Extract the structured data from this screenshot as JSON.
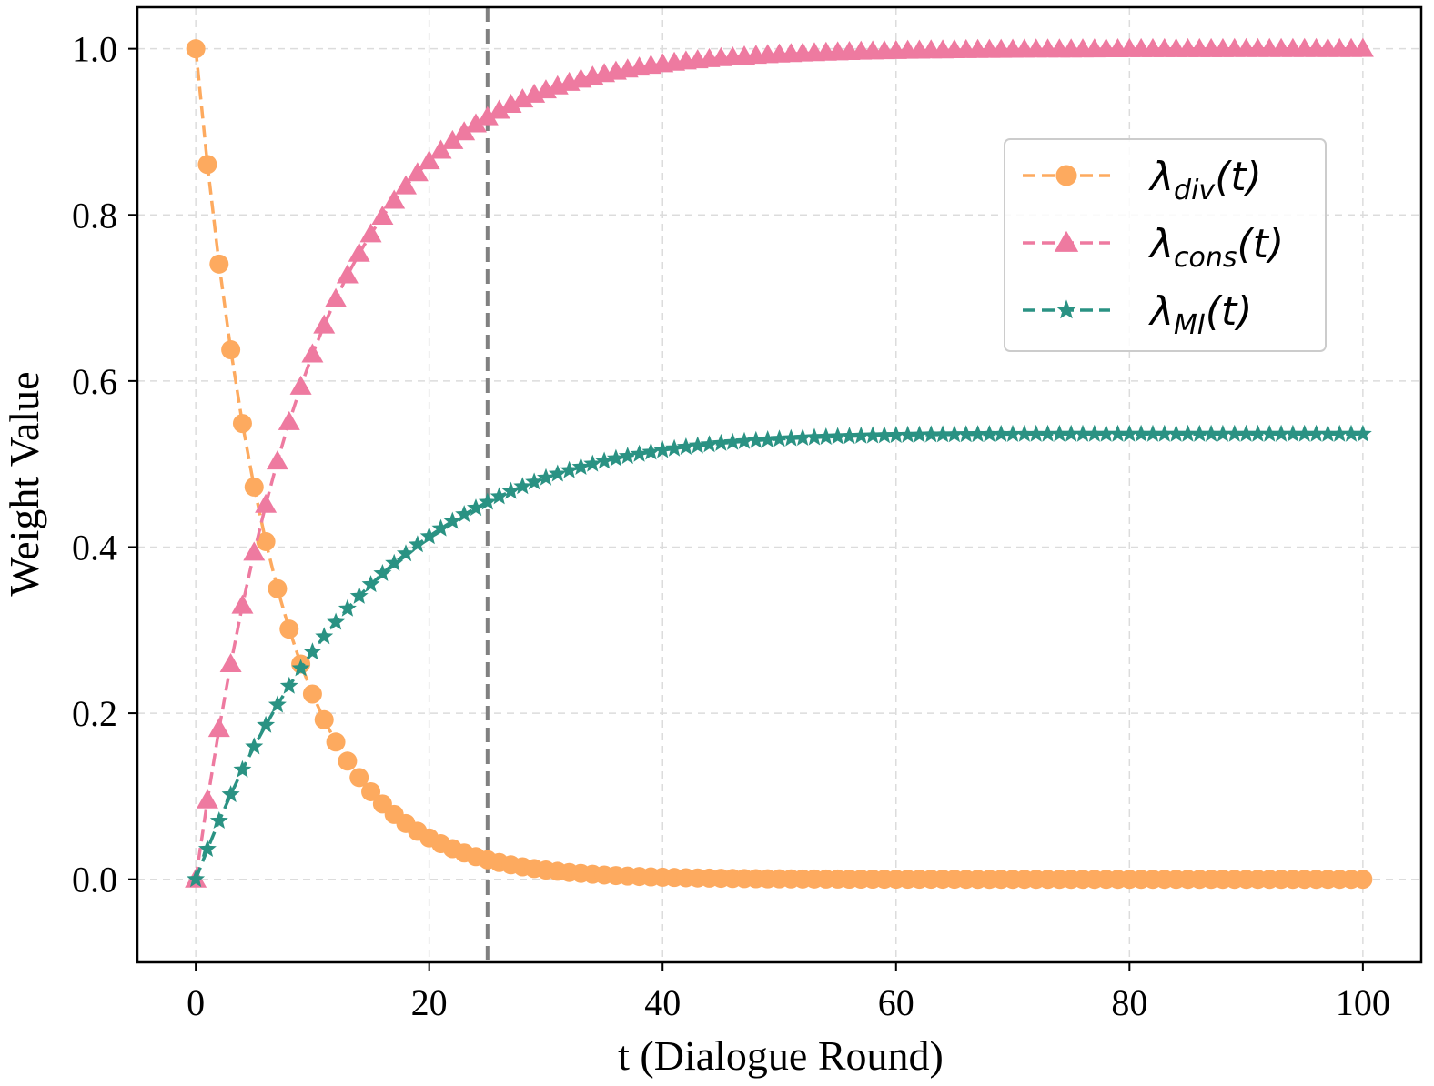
{
  "chart_data": {
    "type": "line",
    "title": "",
    "xlabel": "t (Dialogue Round)",
    "ylabel": "Weight Value",
    "xlim": [
      -5,
      105
    ],
    "ylim": [
      -0.1,
      1.05
    ],
    "xticks": [
      0,
      20,
      40,
      60,
      80,
      100
    ],
    "yticks": [
      0.0,
      0.2,
      0.4,
      0.6,
      0.8,
      1.0
    ],
    "xtick_labels": [
      "0",
      "20",
      "40",
      "60",
      "80",
      "100"
    ],
    "ytick_labels": [
      "0.0",
      "0.2",
      "0.4",
      "0.6",
      "0.8",
      "1.0"
    ],
    "grid": true,
    "legend_position": "upper-right",
    "vline": {
      "x": 25,
      "color": "#808080",
      "style": "dashed"
    },
    "x": [
      0,
      1,
      2,
      3,
      4,
      5,
      6,
      7,
      8,
      9,
      10,
      11,
      12,
      13,
      14,
      15,
      16,
      17,
      18,
      19,
      20,
      21,
      22,
      23,
      24,
      25,
      26,
      27,
      28,
      29,
      30,
      31,
      32,
      33,
      34,
      35,
      36,
      37,
      38,
      39,
      40,
      41,
      42,
      43,
      44,
      45,
      46,
      47,
      48,
      49,
      50,
      51,
      52,
      53,
      54,
      55,
      56,
      57,
      58,
      59,
      60,
      61,
      62,
      63,
      64,
      65,
      66,
      67,
      68,
      69,
      70,
      71,
      72,
      73,
      74,
      75,
      76,
      77,
      78,
      79,
      80,
      81,
      82,
      83,
      84,
      85,
      86,
      87,
      88,
      89,
      90,
      91,
      92,
      93,
      94,
      95,
      96,
      97,
      98,
      99,
      100
    ],
    "series": [
      {
        "name": "λdiv(t)",
        "label_main": "λ",
        "label_sub": "div",
        "label_tail": "(t)",
        "color": "#FDAA5F",
        "marker": "circle",
        "values": [
          1.0,
          0.8607,
          0.7408,
          0.6376,
          0.5488,
          0.4724,
          0.4066,
          0.3499,
          0.3012,
          0.2592,
          0.2231,
          0.1921,
          0.1653,
          0.1423,
          0.1225,
          0.1054,
          0.0907,
          0.0781,
          0.0672,
          0.0578,
          0.0498,
          0.0429,
          0.0369,
          0.0317,
          0.0273,
          0.0235,
          0.0202,
          0.0174,
          0.015,
          0.0129,
          0.0111,
          0.0096,
          0.0082,
          0.0071,
          0.0061,
          0.0052,
          0.0045,
          0.0039,
          0.0034,
          0.0029,
          0.0025,
          0.0022,
          0.0019,
          0.0016,
          0.0014,
          0.0012,
          0.001,
          0.0009,
          0.0007,
          0.0006,
          0.0006,
          0.0005,
          0.0004,
          0.0004,
          0.0003,
          0.0003,
          0.0002,
          0.0002,
          0.0002,
          0.0001,
          0.0001,
          0.0001,
          0.0001,
          0.0001,
          0.0001,
          0.0001,
          0.0,
          0.0,
          0.0,
          0.0,
          0.0,
          0.0,
          0.0,
          0.0,
          0.0,
          0.0,
          0.0,
          0.0,
          0.0,
          0.0,
          0.0,
          0.0,
          0.0,
          0.0,
          0.0,
          0.0,
          0.0,
          0.0,
          0.0,
          0.0,
          0.0,
          0.0,
          0.0,
          0.0,
          0.0,
          0.0,
          0.0,
          0.0,
          0.0,
          0.0,
          0.0
        ]
      },
      {
        "name": "λcons(t)",
        "label_main": "λ",
        "label_sub": "cons",
        "label_tail": "(t)",
        "color": "#EE7AA0",
        "marker": "triangle",
        "values": [
          0.0,
          0.0952,
          0.1813,
          0.2592,
          0.3297,
          0.3935,
          0.4512,
          0.5034,
          0.5507,
          0.5934,
          0.6321,
          0.6671,
          0.6988,
          0.7275,
          0.7534,
          0.7769,
          0.7981,
          0.8173,
          0.8347,
          0.8504,
          0.8647,
          0.8775,
          0.8892,
          0.8997,
          0.9093,
          0.9179,
          0.9257,
          0.9328,
          0.9392,
          0.945,
          0.9502,
          0.955,
          0.9592,
          0.9631,
          0.9666,
          0.9698,
          0.9727,
          0.9753,
          0.9776,
          0.9798,
          0.9817,
          0.9834,
          0.985,
          0.9864,
          0.9877,
          0.9889,
          0.9899,
          0.9909,
          0.9918,
          0.9926,
          0.9933,
          0.9939,
          0.9945,
          0.995,
          0.9955,
          0.9959,
          0.9963,
          0.9967,
          0.997,
          0.9973,
          0.9975,
          0.9978,
          0.998,
          0.9982,
          0.9983,
          0.9985,
          0.9986,
          0.9988,
          0.9989,
          0.999,
          0.9991,
          0.9992,
          0.9993,
          0.9993,
          0.9994,
          0.9994,
          0.9995,
          0.9995,
          0.9996,
          0.9996,
          0.9997,
          0.9997,
          0.9997,
          0.9998,
          0.9998,
          0.9998,
          0.9998,
          0.9998,
          0.9998,
          0.9999,
          0.9999,
          0.9999,
          0.9999,
          0.9999,
          0.9999,
          0.9999,
          0.9999,
          0.9999,
          0.9999,
          0.9999,
          1.0
        ]
      },
      {
        "name": "λMI(t)",
        "label_main": "λ",
        "label_sub": "MI",
        "label_tail": "(t)",
        "color": "#2A9283",
        "marker": "star",
        "values": [
          0.0,
          0.0363,
          0.0703,
          0.102,
          0.1319,
          0.1597,
          0.1856,
          0.21,
          0.2327,
          0.2539,
          0.2738,
          0.2923,
          0.3096,
          0.3258,
          0.3409,
          0.355,
          0.3682,
          0.3806,
          0.3921,
          0.4029,
          0.4129,
          0.4223,
          0.4311,
          0.4393,
          0.447,
          0.4542,
          0.4609,
          0.4672,
          0.473,
          0.4784,
          0.4834,
          0.4881,
          0.4924,
          0.4964,
          0.5001,
          0.5035,
          0.5066,
          0.5094,
          0.512,
          0.5144,
          0.5166,
          0.5186,
          0.5204,
          0.522,
          0.5235,
          0.5249,
          0.5261,
          0.5272,
          0.5283,
          0.5292,
          0.53,
          0.5307,
          0.5314,
          0.532,
          0.5325,
          0.533,
          0.5334,
          0.5338,
          0.5341,
          0.5344,
          0.5347,
          0.5349,
          0.5351,
          0.5353,
          0.5354,
          0.5355,
          0.5356,
          0.5357,
          0.5358,
          0.5359,
          0.5359,
          0.536,
          0.536,
          0.536,
          0.5361,
          0.5361,
          0.5361,
          0.5361,
          0.5361,
          0.5361,
          0.5361,
          0.5361,
          0.5361,
          0.5361,
          0.5361,
          0.5361,
          0.5361,
          0.5361,
          0.5361,
          0.5361,
          0.5361,
          0.5361,
          0.5361,
          0.5361,
          0.5361,
          0.5361,
          0.5361,
          0.5361,
          0.5361,
          0.5361,
          0.5361
        ]
      }
    ]
  }
}
